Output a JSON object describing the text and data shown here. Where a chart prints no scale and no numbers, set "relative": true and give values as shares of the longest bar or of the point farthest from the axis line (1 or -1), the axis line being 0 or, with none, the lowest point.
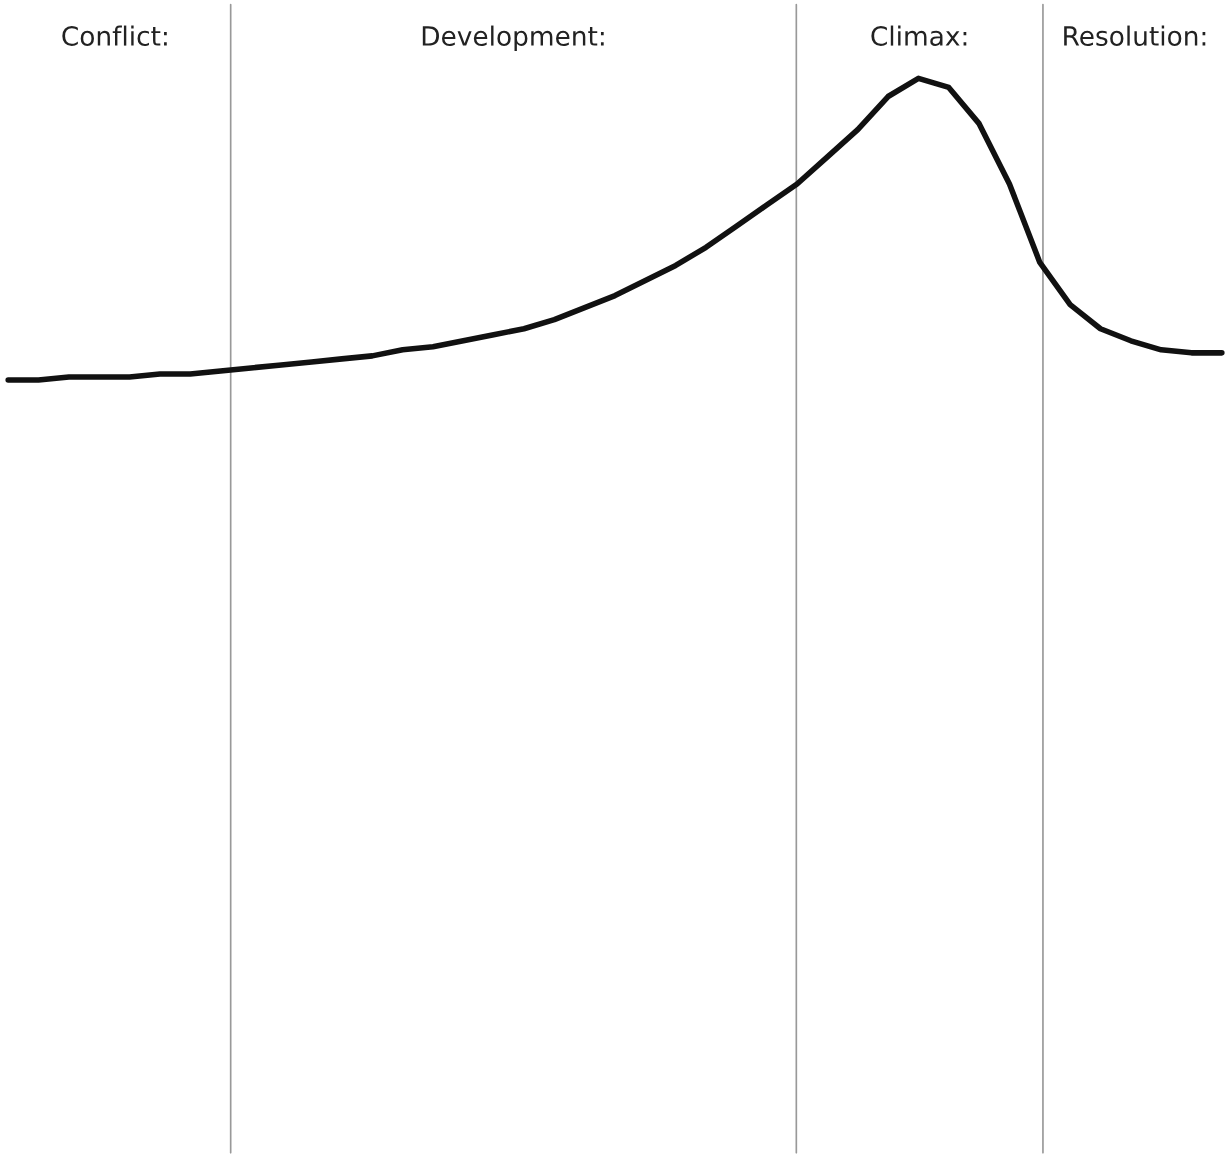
{
  "chart_data": {
    "type": "line",
    "relative": true,
    "grid": false,
    "legend": false,
    "categories": [
      null,
      null,
      null,
      null,
      null,
      null,
      null,
      null,
      null,
      null,
      null,
      null,
      null,
      null,
      null,
      null,
      null,
      null,
      null,
      null,
      null,
      null,
      null,
      null,
      null,
      null,
      null,
      null,
      null,
      null,
      null,
      null,
      null,
      null,
      null,
      null,
      null,
      null,
      null,
      null,
      null
    ],
    "series": [
      {
        "color": "#111111",
        "values": [
          0.0,
          0.0,
          0.01,
          0.01,
          0.01,
          0.02,
          0.02,
          0.03,
          0.04,
          0.05,
          0.06,
          0.07,
          0.08,
          0.1,
          0.11,
          0.13,
          0.15,
          0.17,
          0.2,
          0.24,
          0.28,
          0.33,
          0.38,
          0.44,
          0.51,
          0.58,
          0.65,
          0.74,
          0.83,
          0.94,
          1.0,
          0.97,
          0.85,
          0.65,
          0.39,
          0.25,
          0.17,
          0.13,
          0.1,
          0.09,
          0.09
        ]
      }
    ],
    "annotations": [
      "Conflict:",
      "Development:",
      "Climax:",
      "Resolution:"
    ]
  }
}
